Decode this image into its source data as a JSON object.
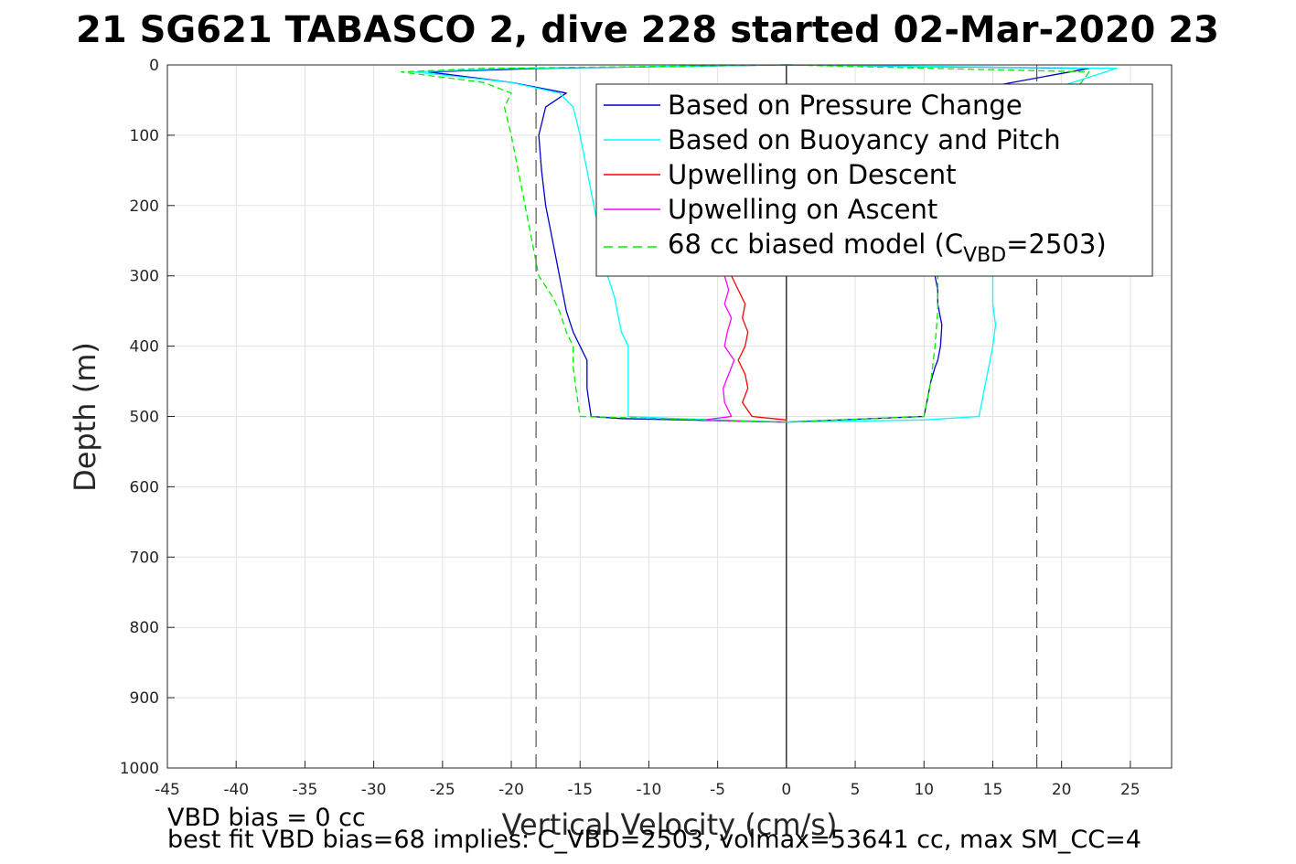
{
  "chart_data": {
    "type": "line",
    "title": "21 SG621 TABASCO 2, dive 228 started 02-Mar-2020 23",
    "xlabel": "Vertical Velocity (cm/s)",
    "ylabel": "Depth (m)",
    "xlim": [
      -45,
      28
    ],
    "ylim": [
      0,
      1000
    ],
    "y_reversed": true,
    "grid": true,
    "xticks": [
      -45,
      -40,
      -35,
      -30,
      -25,
      -20,
      -15,
      -10,
      -5,
      0,
      5,
      10,
      15,
      20,
      25
    ],
    "yticks": [
      0,
      100,
      200,
      300,
      400,
      500,
      600,
      700,
      800,
      900,
      1000
    ],
    "xtick_labels": [
      "-45",
      "-40",
      "-35",
      "-30",
      "-25",
      "-20",
      "-15",
      "-10",
      "-5",
      "0",
      "5",
      "10",
      "15",
      "20",
      "25"
    ],
    "ytick_labels": [
      "0",
      "100",
      "200",
      "300",
      "400",
      "500",
      "600",
      "700",
      "800",
      "900",
      "1000"
    ],
    "legend_position": "top-right",
    "legend": [
      {
        "label": "Based on Pressure Change",
        "color": "#0000cc",
        "dash": "solid"
      },
      {
        "label": "Based on Buoyancy and Pitch",
        "color": "#00ffff",
        "dash": "solid"
      },
      {
        "label": "Upwelling on Descent",
        "color": "#ff0000",
        "dash": "solid"
      },
      {
        "label": "Upwelling on Ascent",
        "color": "#ff00ff",
        "dash": "solid"
      },
      {
        "label_prefix": "68 cc biased model (C",
        "label_sub": "VBD",
        "label_suffix": "=2503)",
        "color": "#00ee00",
        "dash": "dashed"
      }
    ],
    "reference_lines": [
      {
        "x": -18.2,
        "style": "dashed",
        "color": "#555555"
      },
      {
        "x": 18.2,
        "style": "dashed",
        "color": "#555555"
      },
      {
        "x": 0,
        "style": "solid",
        "color": "#000000"
      }
    ],
    "series": [
      {
        "color": "#0000cc",
        "x": [
          0,
          -18,
          -26,
          -20,
          -16,
          -17.5,
          -18,
          -17.8,
          -17.5,
          -17,
          -16.5,
          -16.2,
          -16,
          -15.5,
          -15,
          -14.5,
          -14.5,
          -14.2,
          -12,
          0,
          10,
          10.2,
          10.5,
          10.8,
          11,
          11.2,
          11.3,
          11,
          11,
          10.8,
          10.5,
          10.5,
          10.8,
          15,
          22,
          0
        ],
        "y": [
          0,
          5,
          10,
          25,
          40,
          60,
          100,
          150,
          200,
          250,
          300,
          330,
          350,
          380,
          400,
          420,
          460,
          500,
          503,
          508,
          500,
          480,
          450,
          430,
          420,
          400,
          370,
          340,
          320,
          300,
          250,
          200,
          100,
          30,
          5,
          0
        ]
      },
      {
        "color": "#00ffff",
        "x": [
          0,
          -20,
          -27,
          -20,
          -16.5,
          -15.5,
          -15,
          -14.5,
          -14,
          -13.5,
          -13,
          -12.5,
          -12.3,
          -12,
          -11.5,
          -11.5,
          -11.5,
          -8,
          0,
          10,
          14,
          14.2,
          14.5,
          14.8,
          15,
          15.2,
          15,
          15,
          15,
          15,
          20,
          24,
          0
        ],
        "y": [
          0,
          5,
          10,
          25,
          40,
          60,
          100,
          150,
          200,
          250,
          300,
          330,
          350,
          380,
          400,
          450,
          500,
          503,
          508,
          505,
          500,
          480,
          450,
          420,
          400,
          370,
          340,
          320,
          300,
          200,
          30,
          5,
          0
        ]
      },
      {
        "color": "#ff0000",
        "x": [
          -4,
          -3.5,
          -3,
          -3.2,
          -2.8,
          -3,
          -3.5,
          -3,
          -2.8,
          -3.2,
          -2.5,
          -1,
          0,
          0
        ],
        "y": [
          300,
          320,
          340,
          360,
          380,
          400,
          420,
          440,
          460,
          480,
          500,
          503,
          505,
          508
        ]
      },
      {
        "color": "#ff00ff",
        "x": [
          -4.5,
          -4.2,
          -4.5,
          -4,
          -4.3,
          -4.5,
          -3.8,
          -4.2,
          -4.6,
          -4.5,
          -4,
          -6,
          -3,
          0
        ],
        "y": [
          300,
          320,
          340,
          360,
          380,
          400,
          420,
          440,
          460,
          480,
          500,
          505,
          507,
          508
        ]
      },
      {
        "color": "#00ee00",
        "dash": true,
        "x": [
          0,
          -22,
          -28,
          -22,
          -20,
          -20.5,
          -20,
          -19.5,
          -19,
          -18.5,
          -18,
          -17,
          -16.5,
          -16,
          -15.5,
          -15.5,
          -15.3,
          -15,
          0,
          10,
          10.5,
          10.8,
          11,
          11,
          11,
          22,
          0
        ],
        "y": [
          0,
          5,
          10,
          25,
          40,
          60,
          100,
          150,
          200,
          250,
          300,
          330,
          350,
          380,
          400,
          430,
          460,
          500,
          508,
          500,
          450,
          400,
          350,
          320,
          300,
          10,
          0
        ]
      }
    ]
  },
  "notes": [
    "VBD bias = 0 cc",
    "best fit VBD bias=68 implies: C_VBD=2503, volmax=53641 cc, max SM_CC=4"
  ]
}
